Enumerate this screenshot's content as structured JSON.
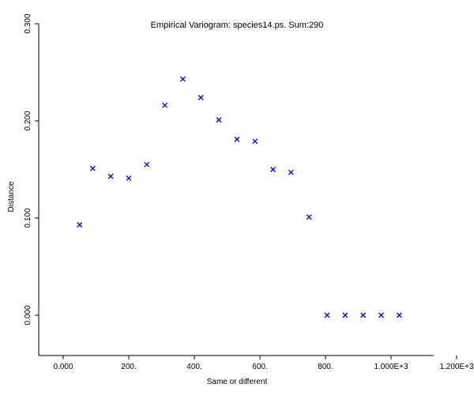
{
  "chart_data": {
    "type": "scatter",
    "title": "Empirical Variogram: species14.ps. Sum:290",
    "xlabel": "Same or different",
    "ylabel": "Distance",
    "xlim": [
      -70,
      1200
    ],
    "ylim": [
      -0.04,
      0.3
    ],
    "x_ticks": [
      0,
      200,
      400,
      600,
      800,
      1000,
      1200
    ],
    "x_tick_labels": [
      "0.000",
      "200.",
      "400.",
      "600.",
      "800.",
      "1.000E+3",
      "1.200E+3"
    ],
    "y_ticks": [
      0,
      0.1,
      0.2,
      0.3
    ],
    "y_tick_labels": [
      "0.000",
      "0.100",
      "0.200",
      "0.300"
    ],
    "grid": false,
    "marker": "x",
    "marker_color": "#0000ee",
    "points": [
      {
        "x": 50,
        "y": 0.093
      },
      {
        "x": 90,
        "y": 0.151
      },
      {
        "x": 145,
        "y": 0.143
      },
      {
        "x": 200,
        "y": 0.141
      },
      {
        "x": 255,
        "y": 0.155
      },
      {
        "x": 310,
        "y": 0.216
      },
      {
        "x": 365,
        "y": 0.243
      },
      {
        "x": 420,
        "y": 0.224
      },
      {
        "x": 475,
        "y": 0.201
      },
      {
        "x": 530,
        "y": 0.181
      },
      {
        "x": 585,
        "y": 0.179
      },
      {
        "x": 640,
        "y": 0.15
      },
      {
        "x": 695,
        "y": 0.147
      },
      {
        "x": 750,
        "y": 0.101
      },
      {
        "x": 805,
        "y": 0.0
      },
      {
        "x": 860,
        "y": 0.0
      },
      {
        "x": 915,
        "y": 0.0
      },
      {
        "x": 970,
        "y": 0.0
      },
      {
        "x": 1025,
        "y": 0.0
      }
    ]
  }
}
